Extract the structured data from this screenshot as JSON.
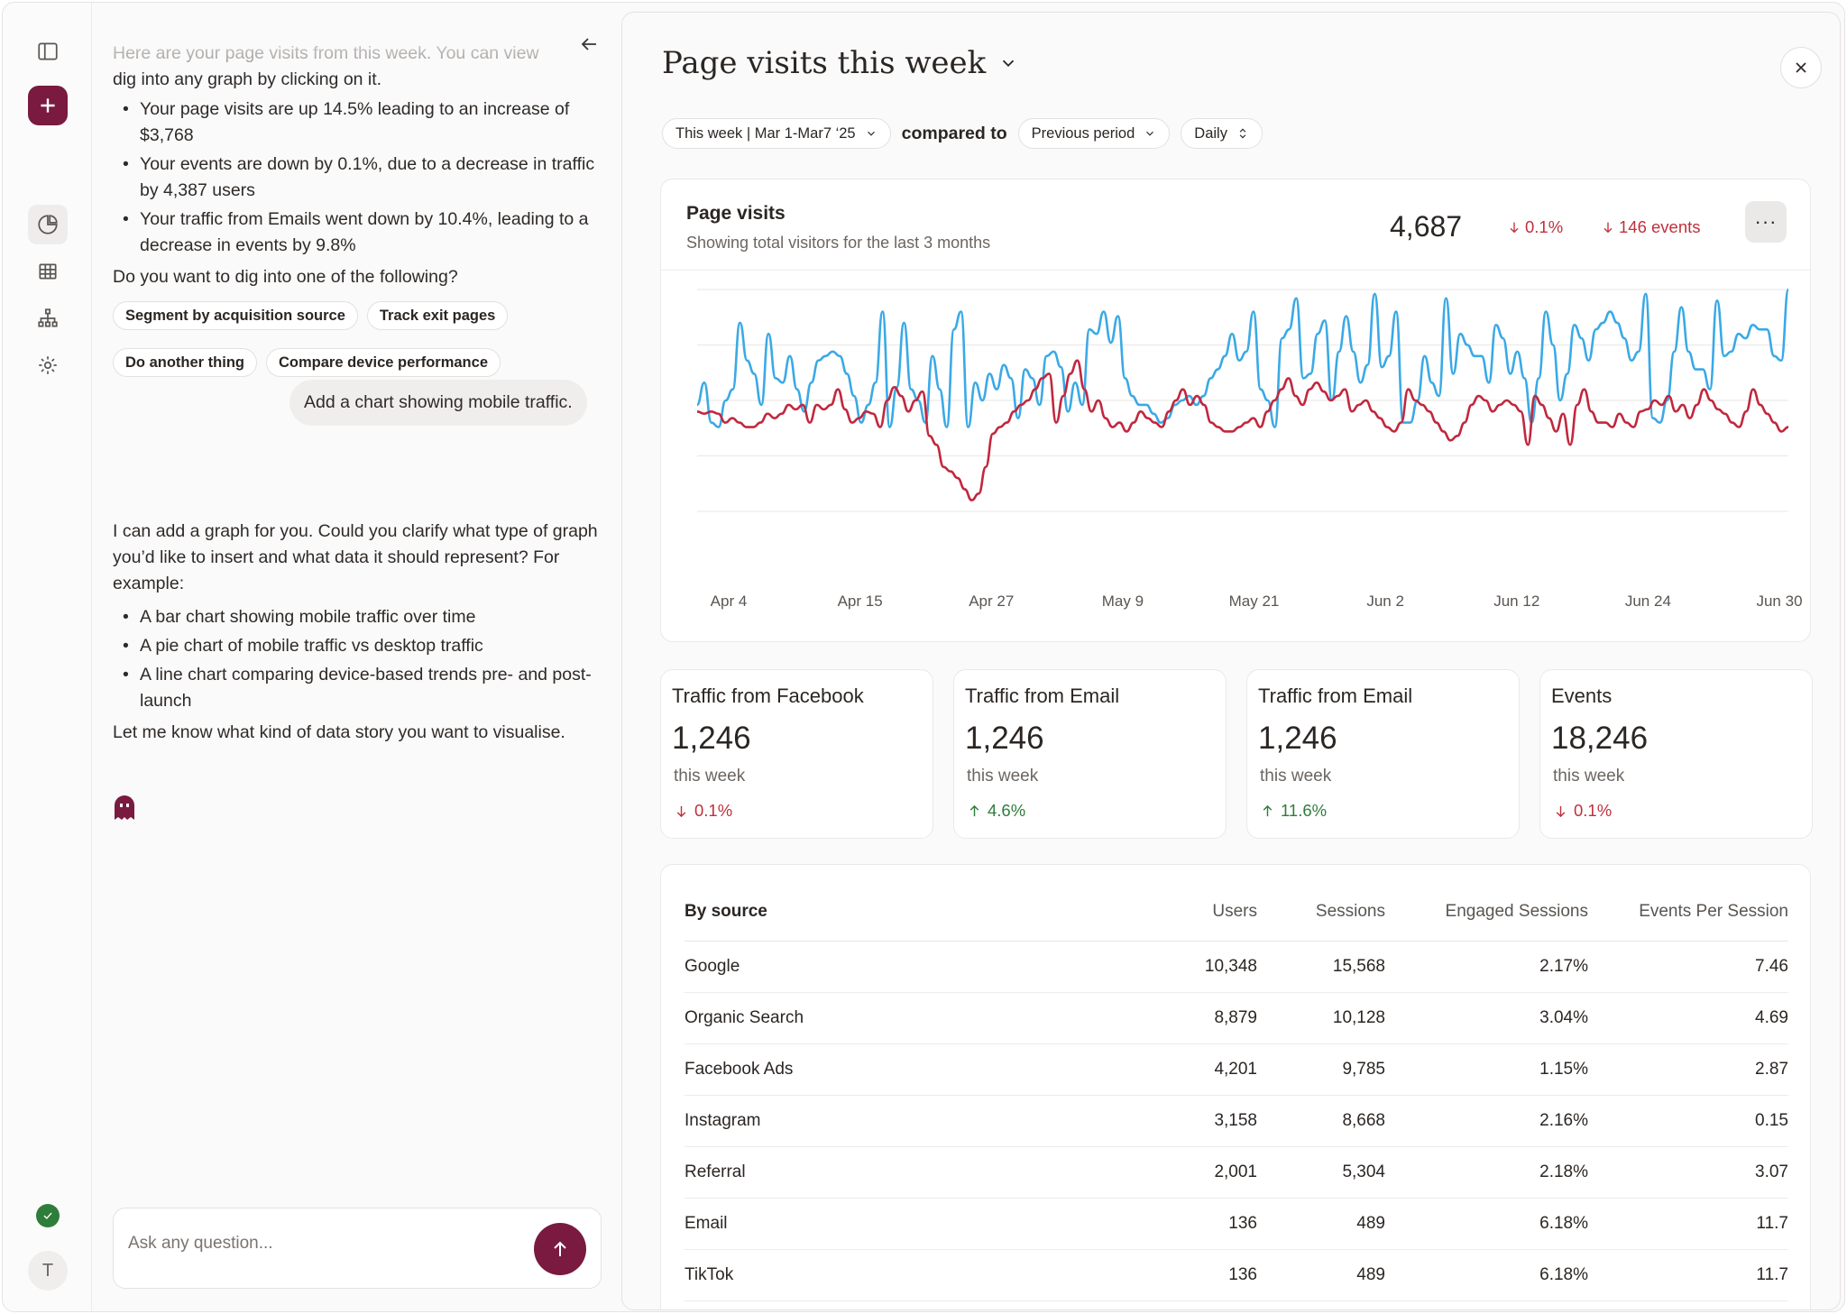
{
  "chat": {
    "intro_line1": "Here are your page visits from this week. You can view",
    "intro_line2": "dig into any graph by clicking on it.",
    "bullets": [
      "Your page visits are up 14.5% leading to an increase of $3,768",
      "Your events are down by 0.1%, due to a decrease in traffic by 4,387 users",
      "Your traffic from Emails went down by 10.4%, leading to a decrease in events by 9.8%"
    ],
    "question": "Do you want to dig into one of the following?",
    "chips": [
      "Segment by acquisition source",
      "Track exit pages",
      "Do another thing",
      "Compare device performance"
    ],
    "user_message": "Add a chart showing mobile traffic.",
    "reply_intro": "I can add a graph for you. Could you clarify what type of graph you’d like to insert and what data it should represent? For example:",
    "reply_bullets": [
      "A bar chart showing mobile traffic over time",
      "A pie chart of mobile traffic vs desktop traffic",
      "A line chart comparing device-based trends pre- and post-launch"
    ],
    "reply_outro": "Let me know what kind of data story you want to visualise.",
    "input_placeholder": "Ask any question..."
  },
  "panel": {
    "title": "Page visits this week",
    "date_filter": "This week | Mar 1-Mar7 ‘25",
    "compared_to": "compared to",
    "compare_filter": "Previous period",
    "granularity": "Daily"
  },
  "chart_card": {
    "title": "Page visits",
    "subtitle": "Showing total visitors for the last 3 months",
    "total": "4,687",
    "delta_pct": "0.1%",
    "delta_events": "146 events"
  },
  "chart_data": {
    "type": "line",
    "x_tick_labels": [
      "Apr 4",
      "Apr 15",
      "Apr 27",
      "May 9",
      "May 21",
      "Jun 2",
      "Jun 12",
      "Jun 24",
      "Jun 30"
    ],
    "grid": true,
    "series": [
      {
        "color": "#3aa9e6",
        "values": [
          48,
          58,
          40,
          38,
          50,
          55,
          85,
          68,
          62,
          48,
          80,
          60,
          58,
          70,
          55,
          45,
          58,
          68,
          70,
          72,
          70,
          62,
          52,
          40,
          48,
          58,
          90,
          38,
          56,
          85,
          55,
          50,
          40,
          70,
          55,
          38,
          82,
          90,
          38,
          58,
          50,
          62,
          55,
          66,
          60,
          42,
          64,
          60,
          48,
          70,
          72,
          65,
          45,
          58,
          48,
          82,
          80,
          90,
          76,
          88,
          60,
          52,
          48,
          48,
          44,
          40,
          42,
          48,
          50,
          52,
          48,
          52,
          60,
          64,
          70,
          80,
          68,
          72,
          90,
          55,
          50,
          38,
          78,
          82,
          96,
          60,
          62,
          80,
          86,
          50,
          72,
          88,
          72,
          58,
          66,
          98,
          65,
          70,
          90,
          40,
          40,
          50,
          70,
          58,
          52,
          96,
          62,
          80,
          75,
          70,
          70,
          58,
          84,
          78,
          62,
          72,
          60,
          40,
          60,
          90,
          75,
          50,
          62,
          84,
          78,
          68,
          82,
          85,
          90,
          85,
          78,
          68,
          72,
          98,
          42,
          40,
          50,
          72,
          92,
          72,
          64,
          64,
          55,
          95,
          70,
          72,
          80,
          78,
          84,
          82,
          82,
          70,
          68,
          100
        ]
      },
      {
        "color": "#c0283e",
        "values": [
          45,
          44,
          45,
          44,
          40,
          42,
          40,
          38,
          38,
          40,
          44,
          42,
          44,
          48,
          46,
          48,
          40,
          48,
          46,
          48,
          55,
          46,
          40,
          42,
          45,
          44,
          38,
          50,
          56,
          52,
          45,
          50,
          54,
          34,
          30,
          20,
          18,
          15,
          10,
          5,
          8,
          20,
          35,
          38,
          40,
          45,
          48,
          50,
          55,
          60,
          62,
          40,
          52,
          62,
          68,
          55,
          45,
          50,
          42,
          38,
          40,
          36,
          40,
          45,
          42,
          40,
          38,
          45,
          50,
          55,
          48,
          52,
          48,
          40,
          38,
          36,
          36,
          38,
          40,
          42,
          38,
          45,
          50,
          55,
          60,
          52,
          48,
          55,
          58,
          54,
          50,
          52,
          55,
          45,
          48,
          50,
          45,
          42,
          38,
          36,
          40,
          55,
          50,
          48,
          45,
          40,
          36,
          32,
          34,
          40,
          48,
          52,
          50,
          45,
          48,
          50,
          48,
          45,
          30,
          52,
          48,
          42,
          36,
          44,
          30,
          48,
          55,
          45,
          40,
          40,
          38,
          44,
          40,
          38,
          45,
          46,
          50,
          48,
          52,
          45,
          48,
          42,
          48,
          55,
          50,
          46,
          44,
          40,
          38,
          45,
          55,
          48,
          44,
          40,
          36,
          38
        ]
      }
    ]
  },
  "stats": [
    {
      "title": "Traffic from Facebook",
      "value": "1,246",
      "sub": "this week",
      "delta": "0.1%",
      "dir": "down"
    },
    {
      "title": "Traffic from Email",
      "value": "1,246",
      "sub": "this week",
      "delta": "4.6%",
      "dir": "up"
    },
    {
      "title": "Traffic from Email",
      "value": "1,246",
      "sub": "this week",
      "delta": "11.6%",
      "dir": "up"
    },
    {
      "title": "Events",
      "value": "18,246",
      "sub": "this week",
      "delta": "0.1%",
      "dir": "down"
    }
  ],
  "table": {
    "headers": [
      "By source",
      "Users",
      "Sessions",
      "Engaged Sessions",
      "Events Per Session"
    ],
    "rows": [
      [
        "Google",
        "10,348",
        "15,568",
        "2.17%",
        "7.46"
      ],
      [
        "Organic Search",
        "8,879",
        "10,128",
        "3.04%",
        "4.69"
      ],
      [
        "Facebook Ads",
        "4,201",
        "9,785",
        "1.15%",
        "2.87"
      ],
      [
        "Instagram",
        "3,158",
        "8,668",
        "2.16%",
        "0.15"
      ],
      [
        "Referral",
        "2,001",
        "5,304",
        "2.18%",
        "3.07"
      ],
      [
        "Email",
        "136",
        "489",
        "6.18%",
        "11.7"
      ],
      [
        "TikTok",
        "136",
        "489",
        "6.18%",
        "11.7"
      ]
    ]
  },
  "rail": {
    "avatar_initial": "T"
  }
}
